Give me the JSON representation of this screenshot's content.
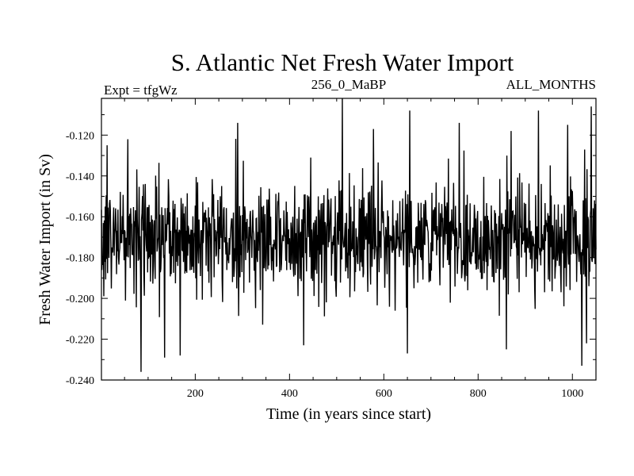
{
  "chart_data": {
    "type": "line",
    "title": "S. Atlantic Net Fresh Water Import",
    "subtitle_left": "Expt = tfgWz",
    "subtitle_center": "256_0_MaBP",
    "subtitle_right": "ALL_MONTHS",
    "xlabel": "Time (in years since start)",
    "ylabel": "Fresh Water Import (in Sv)",
    "xlim": [
      1,
      1050
    ],
    "ylim": [
      -0.24,
      -0.102
    ],
    "x_ticks": [
      200,
      400,
      600,
      800,
      1000
    ],
    "y_ticks": [
      -0.12,
      -0.14,
      -0.16,
      -0.18,
      -0.2,
      -0.22,
      -0.24
    ],
    "y_tick_labels": [
      "-0.120",
      "-0.140",
      "-0.160",
      "-0.180",
      "-0.200",
      "-0.220",
      "-0.240"
    ],
    "series": [
      {
        "name": "Net Fresh Water Import",
        "x_start": 1,
        "x_step": 1,
        "count": 1050,
        "mean": -0.17,
        "std": 0.016,
        "min": -0.236,
        "max": -0.102,
        "extremes": [
          {
            "x": 85,
            "y": -0.236
          },
          {
            "x": 512,
            "y": -0.102
          },
          {
            "x": 1040,
            "y": -0.106
          },
          {
            "x": 655,
            "y": -0.108
          },
          {
            "x": 928,
            "y": -0.108
          },
          {
            "x": 1020,
            "y": -0.233
          },
          {
            "x": 135,
            "y": -0.229
          },
          {
            "x": 168,
            "y": -0.228
          },
          {
            "x": 430,
            "y": -0.223
          },
          {
            "x": 650,
            "y": -0.227
          },
          {
            "x": 860,
            "y": -0.225
          },
          {
            "x": 1030,
            "y": -0.222
          },
          {
            "x": 13,
            "y": -0.125
          },
          {
            "x": 57,
            "y": -0.122
          },
          {
            "x": 290,
            "y": -0.114
          },
          {
            "x": 578,
            "y": -0.117
          },
          {
            "x": 760,
            "y": -0.114
          },
          {
            "x": 870,
            "y": -0.118
          },
          {
            "x": 990,
            "y": -0.115
          }
        ]
      }
    ]
  }
}
